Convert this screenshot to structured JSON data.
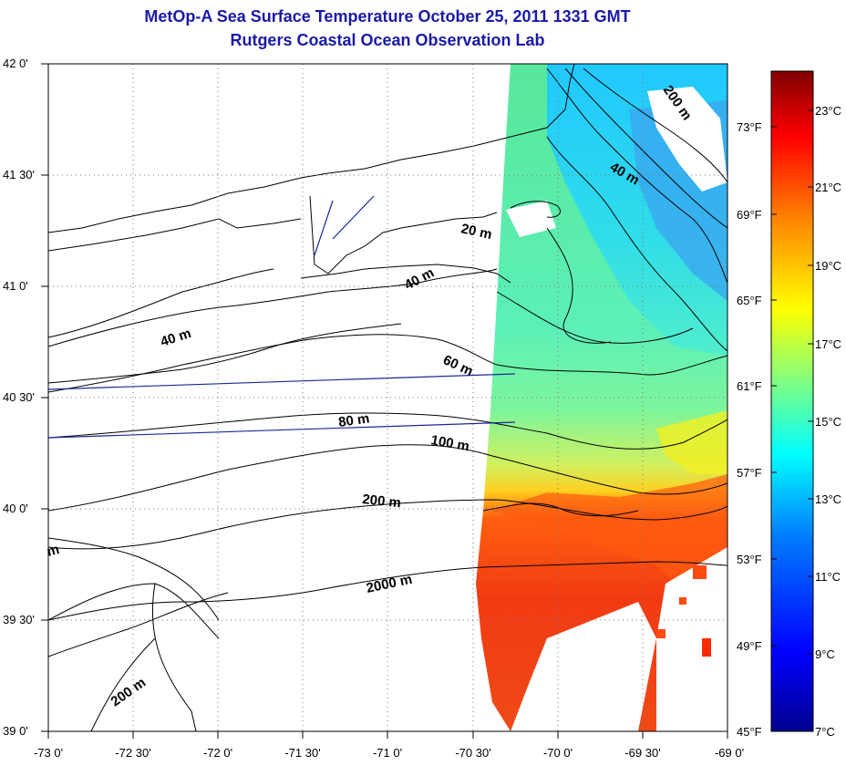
{
  "title": {
    "line1": "MetOp-A Sea Surface Temperature October 25, 2011 1331 GMT",
    "line2": "Rutgers Coastal Ocean Observation Lab"
  },
  "axes": {
    "lat_labels": [
      "42 0'",
      "41 30'",
      "41 0'",
      "40 30'",
      "40 0'",
      "39 30'",
      "39 0'"
    ],
    "lon_labels": [
      "-73 0'",
      "-72 30'",
      "-72 0'",
      "-71 30'",
      "-71 0'",
      "-70 30'",
      "-70 0'",
      "-69 30'",
      "-69 0'"
    ],
    "lat_range": [
      39.0,
      42.0
    ],
    "lon_range": [
      -73.0,
      -69.0
    ]
  },
  "colorbar": {
    "fahrenheit": [
      "73°F",
      "69°F",
      "65°F",
      "61°F",
      "57°F",
      "53°F",
      "49°F",
      "45°F"
    ],
    "celsius": [
      "23°C",
      "21°C",
      "19°C",
      "17°C",
      "15°C",
      "13°C",
      "11°C",
      "9°C",
      "7°C"
    ],
    "range_c": [
      7,
      24
    ],
    "colors": [
      "#00008f",
      "#0000ff",
      "#0080ff",
      "#00ffff",
      "#80ff80",
      "#ffff00",
      "#ff8000",
      "#ff0000",
      "#800000"
    ]
  },
  "contours": [
    "200 m",
    "40 m",
    "20 m",
    "40 m",
    "40 m",
    "60 m",
    "80 m",
    "100 m",
    "200 m",
    "2000 m",
    "200 m",
    "m"
  ],
  "colors": {
    "title": "#1a1aa6",
    "cloud_mask": "#ffffff",
    "land_outline": "#000000",
    "transect": "#1a2a9a"
  }
}
